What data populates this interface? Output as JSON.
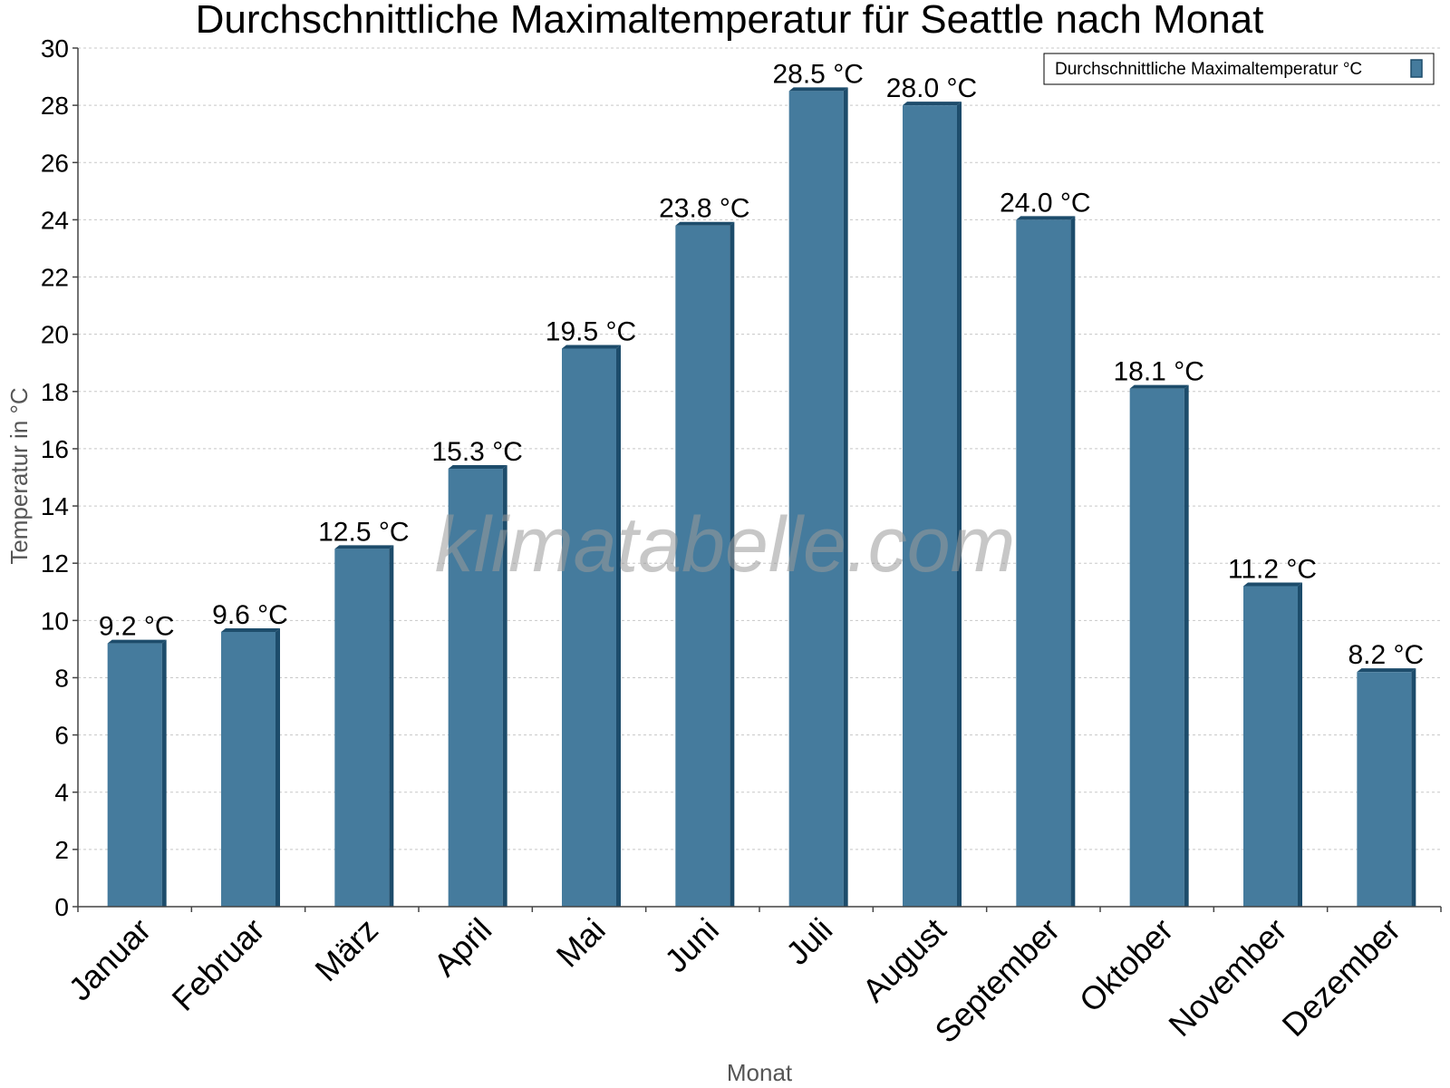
{
  "chart_data": {
    "type": "bar",
    "title": "Durchschnittliche Maximaltemperatur für Seattle nach Monat",
    "xlabel": "Monat",
    "ylabel": "Temperatur in °C",
    "ylim": [
      0,
      30
    ],
    "yticks": [
      0,
      2,
      4,
      6,
      8,
      10,
      12,
      14,
      16,
      18,
      20,
      22,
      24,
      26,
      28,
      30
    ],
    "grid": true,
    "legend_position": "top-right",
    "categories": [
      "Januar",
      "Februar",
      "März",
      "April",
      "Mai",
      "Juni",
      "Juli",
      "August",
      "September",
      "Oktober",
      "November",
      "Dezember"
    ],
    "series": [
      {
        "name": "Durchschnittliche Maximaltemperatur °C",
        "color": "#457b9d",
        "values": [
          9.2,
          9.6,
          12.5,
          15.3,
          19.5,
          23.8,
          28.5,
          28.0,
          24.0,
          18.1,
          11.2,
          8.2
        ],
        "labels": [
          "9.2 °C",
          "9.6 °C",
          "12.5 °C",
          "15.3 °C",
          "19.5 °C",
          "23.8 °C",
          "28.5 °C",
          "28.0 °C",
          "24.0 °C",
          "18.1 °C",
          "11.2 °C",
          "8.2 °C"
        ]
      }
    ],
    "watermark": "klimatabelle.com"
  }
}
